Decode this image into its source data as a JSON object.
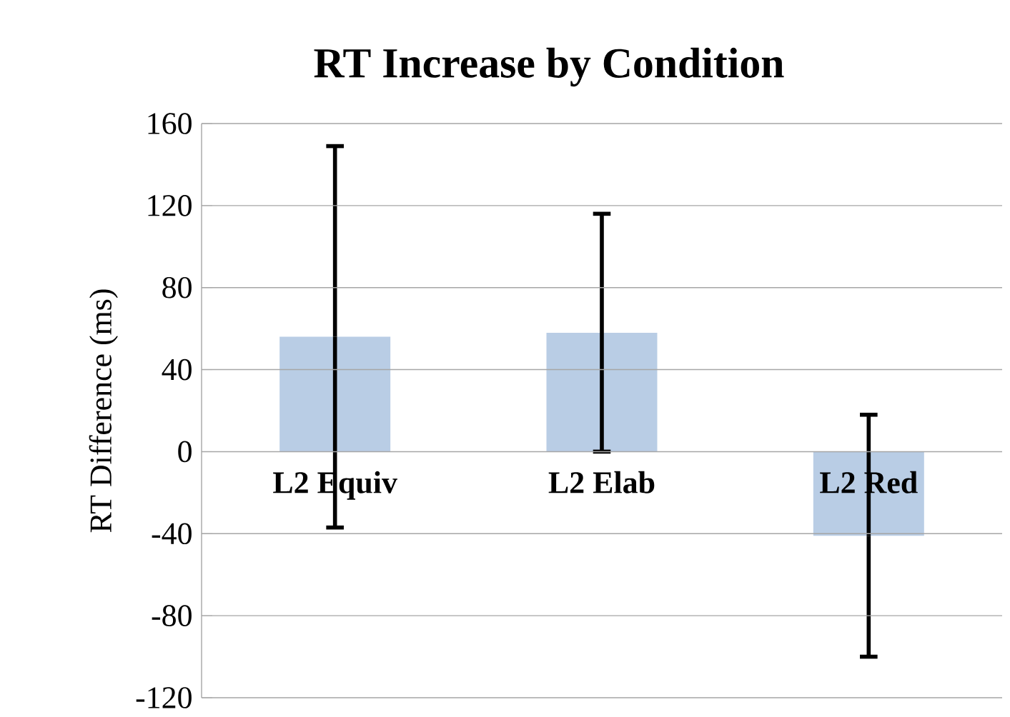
{
  "chart_data": {
    "type": "bar",
    "title": "RT Increase by Condition",
    "ylabel": "RT Difference (ms)",
    "categories": [
      "L2 Equiv",
      "L2 Elab",
      "L2 Red"
    ],
    "values": [
      56,
      58,
      -41
    ],
    "errors": [
      93,
      58,
      59
    ],
    "color": "#b9cde5",
    "ylim": [
      -120,
      160
    ],
    "yticks": [
      -120,
      -80,
      -40,
      0,
      40,
      80,
      120,
      160
    ],
    "grid": "y"
  }
}
